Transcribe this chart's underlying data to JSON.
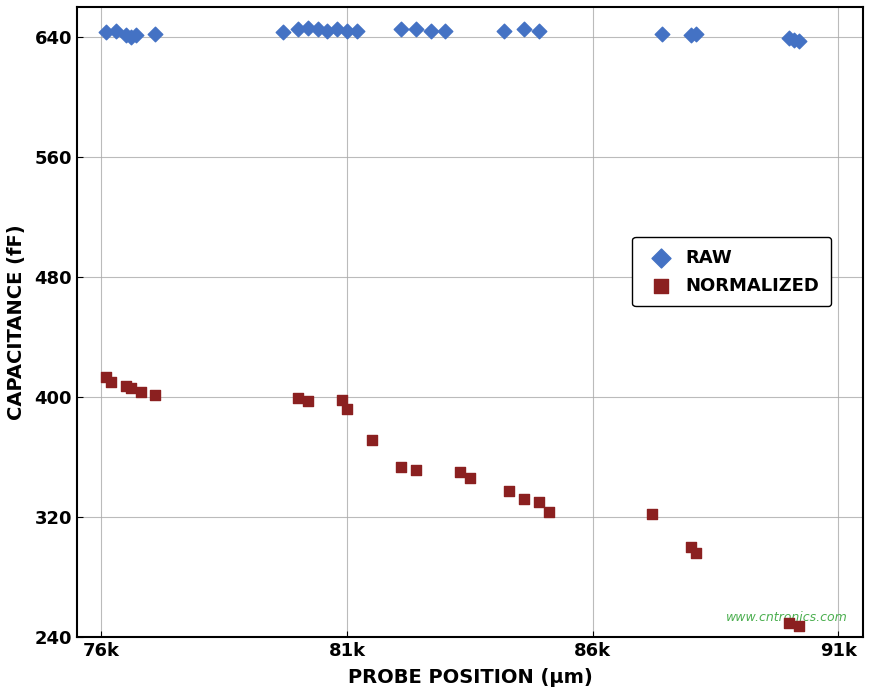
{
  "raw_x": [
    76100,
    76300,
    76500,
    76600,
    76700,
    77100,
    79700,
    80000,
    80200,
    80400,
    80600,
    80800,
    81000,
    81200,
    82100,
    82400,
    82700,
    83000,
    84200,
    84600,
    84900,
    87400,
    88000,
    88100,
    90000,
    90100,
    90200
  ],
  "raw_y": [
    643,
    644,
    641,
    640,
    641,
    642,
    643,
    645,
    646,
    645,
    644,
    645,
    644,
    644,
    645,
    645,
    644,
    644,
    644,
    645,
    644,
    642,
    641,
    642,
    639,
    638,
    637
  ],
  "norm_x": [
    76100,
    76200,
    76500,
    76600,
    76800,
    77100,
    80000,
    80200,
    80900,
    81000,
    81500,
    82100,
    82400,
    83300,
    83500,
    84300,
    84600,
    84900,
    85100,
    87200,
    88000,
    88100,
    90000,
    90200
  ],
  "norm_y": [
    413,
    410,
    407,
    406,
    403,
    401,
    399,
    397,
    398,
    392,
    371,
    353,
    351,
    350,
    346,
    337,
    332,
    330,
    323,
    322,
    300,
    296,
    249,
    247
  ],
  "xlim": [
    75500,
    91500
  ],
  "ylim": [
    240,
    660
  ],
  "xticks": [
    76000,
    81000,
    86000,
    91000
  ],
  "xtick_labels": [
    "76k",
    "81k",
    "86k",
    "91k"
  ],
  "yticks": [
    240,
    320,
    400,
    480,
    560,
    640
  ],
  "xlabel": "PROBE POSITION (μm)",
  "ylabel": "CAPACITANCE (fF)",
  "raw_color": "#4472C4",
  "norm_color": "#8B2020",
  "raw_label": "RAW",
  "norm_label": "NORMALIZED",
  "background_color": "#FFFFFF",
  "grid_color": "#AAAAAA",
  "watermark": "www.cntronics.com",
  "watermark_color": "#4CAF50"
}
